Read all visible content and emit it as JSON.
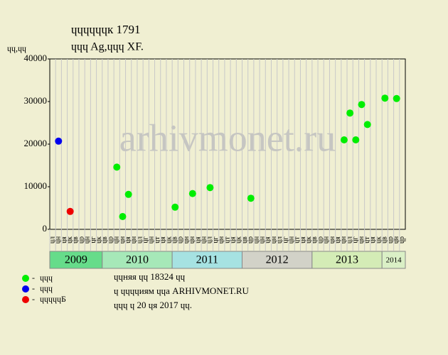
{
  "chart_data": {
    "type": "scatter",
    "title": "ɥɥɥɥɥɥк 1791",
    "subtitle": "ɥɥɥ Ag,ɥɥɥ XF.",
    "y_label": "ɥɥ,ɥɥ",
    "watermark": "arhivmonet.ru",
    "categories": [
      "ɥл",
      "ɥн",
      "ɥя",
      "ɥк",
      "ɥв",
      "ɥр",
      "ɥн",
      "ɥг",
      "ɥк",
      "ɥв",
      "ɥр",
      "ɥн",
      "ɥн",
      "ɥя",
      "ɥн",
      "ɥл",
      "ɥг",
      "ɥн",
      "ɥт",
      "ɥя",
      "ɥк",
      "ɥв",
      "ɥр",
      "ɥн",
      "ɥн",
      "ɥя",
      "ɥн",
      "ɥл",
      "ɥг",
      "ɥн",
      "ɥт",
      "ɥя",
      "ɥк",
      "ɥв",
      "ɥр",
      "ɥн",
      "ɥн",
      "ɥя",
      "ɥн",
      "ɥл",
      "ɥг",
      "ɥн",
      "ɥт",
      "ɥя",
      "ɥк",
      "ɥв",
      "ɥр",
      "ɥн",
      "ɥн",
      "ɥя",
      "ɥн",
      "ɥл",
      "ɥг",
      "ɥн",
      "ɥт",
      "ɥя",
      "ɥк",
      "ɥв",
      "ɥр",
      "ɥн",
      "ɥр"
    ],
    "category_years": [
      "2009",
      "2009",
      "2009",
      "2009",
      "2009",
      "2009",
      "2009",
      "2009",
      "2009",
      "2010",
      "2010",
      "2010",
      "2010",
      "2010",
      "2010",
      "2010",
      "2010",
      "2010",
      "2010",
      "2010",
      "2010",
      "2011",
      "2011",
      "2011",
      "2011",
      "2011",
      "2011",
      "2011",
      "2011",
      "2011",
      "2011",
      "2011",
      "2011",
      "2012",
      "2012",
      "2012",
      "2012",
      "2012",
      "2012",
      "2012",
      "2012",
      "2012",
      "2012",
      "2012",
      "2012",
      "2013",
      "2013",
      "2013",
      "2013",
      "2013",
      "2013",
      "2013",
      "2013",
      "2013",
      "2013",
      "2013",
      "2013",
      "2014",
      "2014",
      "2014",
      "2014"
    ],
    "year_colors": {
      "2009": "#66dc8a",
      "2010": "#a6e8b8",
      "2011": "#a6e2e2",
      "2012": "#d2d2c8",
      "2013": "#d4ecb6",
      "2014": "#daf0c6"
    },
    "series": [
      {
        "name": "ɥɥɥ",
        "color": "#00ee00",
        "x": [
          11,
          12,
          13,
          21,
          24,
          27,
          34,
          50,
          51,
          52,
          53,
          54,
          57,
          59
        ],
        "values": [
          14600,
          3000,
          8200,
          5200,
          8400,
          9800,
          7300,
          21000,
          27300,
          21000,
          29300,
          24600,
          30800,
          30700
        ]
      },
      {
        "name": "ɥɥɥ",
        "color": "#0000ee",
        "x": [
          1
        ],
        "values": [
          20700
        ]
      },
      {
        "name": "ɥɥɥɥɥБ",
        "color": "#ee0000",
        "x": [
          3
        ],
        "values": [
          4200
        ]
      }
    ],
    "ylim": [
      0,
      40000
    ],
    "yticks": [
      0,
      10000,
      20000,
      30000,
      40000
    ],
    "grid": true,
    "notes": [
      "ɥɥняя ɥɥ 18324 ɥɥ",
      "ɥ ɥɥɥɥиям ɥɥа ARHIVMONET.RU",
      "ɥɥɥ ɥ 20 ɥя 2017 ɥɥ."
    ]
  }
}
